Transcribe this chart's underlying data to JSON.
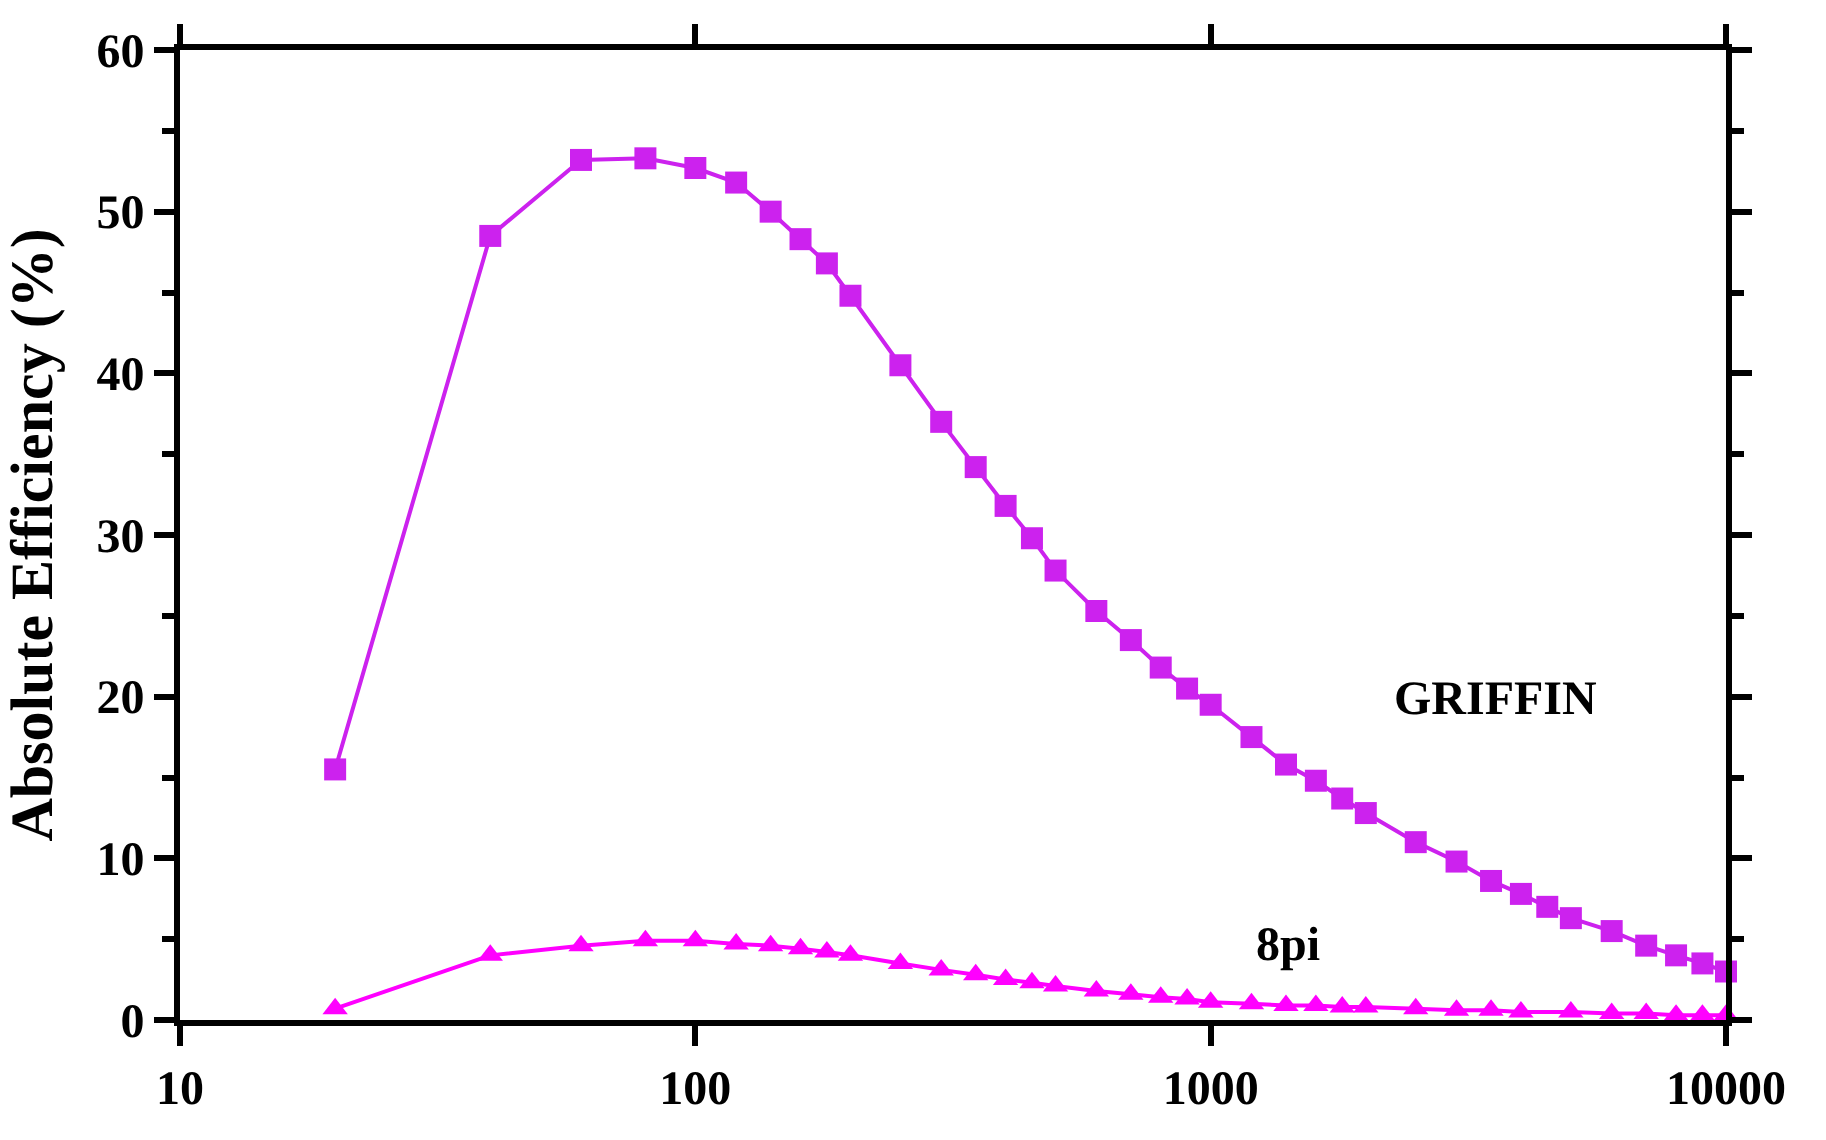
{
  "chart_data": {
    "type": "line",
    "ylabel": "Absolute Efficiency (%)",
    "log": "x",
    "legend": false,
    "xlim": [
      10,
      10000
    ],
    "xticks": [
      10,
      100,
      1000,
      10000
    ],
    "ylim": [
      0,
      60
    ],
    "yticks": [
      0,
      10,
      20,
      30,
      40,
      50,
      60
    ],
    "series": [
      {
        "name": "GRIFFIN",
        "color": "#cc22ee",
        "marker": "square",
        "x": [
          20,
          40,
          60,
          80,
          100,
          120,
          140,
          160,
          180,
          200,
          250,
          300,
          350,
          400,
          450,
          500,
          600,
          700,
          800,
          900,
          1000,
          1200,
          1400,
          1600,
          1800,
          2000,
          2500,
          3000,
          3500,
          4000,
          4500,
          5000,
          6000,
          7000,
          8000,
          9000,
          10000
        ],
        "values": [
          15.5,
          48.5,
          53.2,
          53.3,
          52.7,
          51.8,
          50.0,
          48.3,
          46.8,
          44.8,
          40.5,
          37.0,
          34.2,
          31.8,
          29.8,
          27.8,
          25.3,
          23.5,
          21.8,
          20.5,
          19.5,
          17.5,
          15.8,
          14.8,
          13.7,
          12.8,
          11.0,
          9.8,
          8.6,
          7.8,
          7.0,
          6.3,
          5.5,
          4.6,
          4.0,
          3.5,
          3.0
        ]
      },
      {
        "name": "8pi",
        "color": "#ff00ff",
        "marker": "triangle",
        "x": [
          20,
          40,
          60,
          80,
          100,
          120,
          140,
          160,
          180,
          200,
          250,
          300,
          350,
          400,
          450,
          500,
          600,
          700,
          800,
          900,
          1000,
          1200,
          1400,
          1600,
          1800,
          2000,
          2500,
          3000,
          3500,
          4000,
          5000,
          6000,
          7000,
          8000,
          9000,
          10000
        ],
        "values": [
          0.7,
          4.0,
          4.6,
          4.9,
          4.9,
          4.7,
          4.6,
          4.4,
          4.2,
          4.0,
          3.5,
          3.1,
          2.8,
          2.5,
          2.3,
          2.1,
          1.8,
          1.6,
          1.4,
          1.3,
          1.1,
          1.0,
          0.9,
          0.9,
          0.8,
          0.8,
          0.7,
          0.6,
          0.6,
          0.5,
          0.5,
          0.4,
          0.4,
          0.3,
          0.3,
          0.3
        ]
      }
    ]
  }
}
